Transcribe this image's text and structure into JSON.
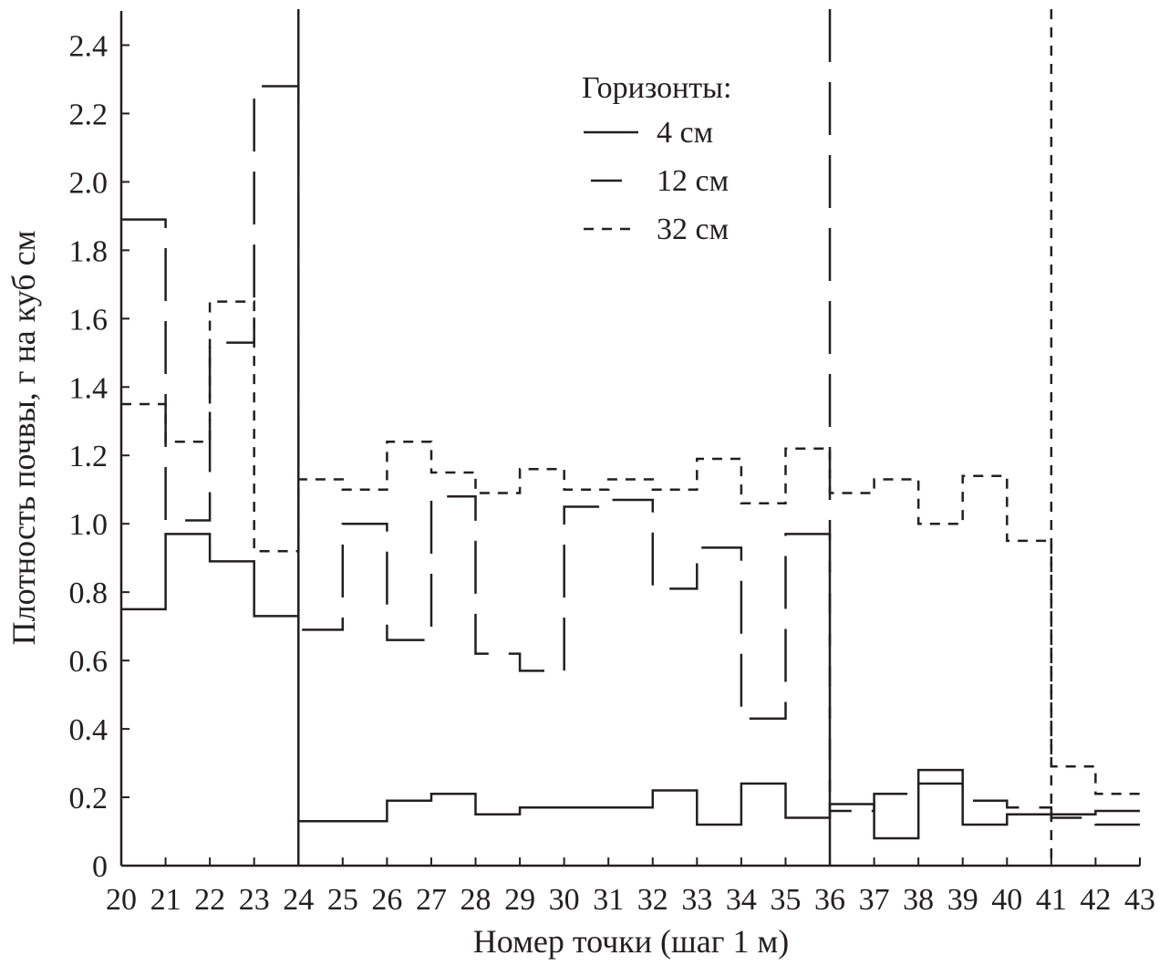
{
  "chart_data": {
    "type": "line",
    "title": "",
    "xlabel": "Номер точки (шаг 1 м)",
    "ylabel": "Плотность почвы, г на куб см",
    "xlim": [
      20,
      43
    ],
    "ylim": [
      0,
      2.5
    ],
    "x_ticks": [
      "20",
      "21",
      "22",
      "23",
      "24",
      "25",
      "26",
      "27",
      "28",
      "29",
      "30",
      "31",
      "32",
      "33",
      "34",
      "35",
      "36",
      "37",
      "38",
      "39",
      "40",
      "41",
      "42",
      "43"
    ],
    "y_ticks": [
      {
        "value": 0,
        "label": "0"
      },
      {
        "value": 0.2,
        "label": "0.2"
      },
      {
        "value": 0.4,
        "label": "0.4"
      },
      {
        "value": 0.6,
        "label": "0.6"
      },
      {
        "value": 0.8,
        "label": "0.8"
      },
      {
        "value": 1.0,
        "label": "1.0"
      },
      {
        "value": 1.2,
        "label": "1.2"
      },
      {
        "value": 1.4,
        "label": "1.4"
      },
      {
        "value": 1.6,
        "label": "1.6"
      },
      {
        "value": 1.8,
        "label": "1.8"
      },
      {
        "value": 2.0,
        "label": "2.0"
      },
      {
        "value": 2.2,
        "label": "2.2"
      },
      {
        "value": 2.4,
        "label": "2.4"
      }
    ],
    "grid": false,
    "legend": {
      "title": "Горизонты:",
      "placement": "top-right"
    },
    "boundaries": [
      {
        "x": 24,
        "style": "solid"
      },
      {
        "x": 36,
        "style": "long-dash"
      },
      {
        "x": 41,
        "style": "short-dash"
      }
    ],
    "step_edges": [
      20,
      21,
      22,
      23,
      24,
      25,
      26,
      27,
      28,
      29,
      30,
      31,
      32,
      33,
      34,
      35,
      36,
      37,
      38,
      39,
      40,
      41,
      42,
      43
    ],
    "series": [
      {
        "name": "4 см",
        "style": "solid",
        "values": [
          0.75,
          0.97,
          0.89,
          0.73,
          0.13,
          0.13,
          0.19,
          0.21,
          0.15,
          0.17,
          0.17,
          0.17,
          0.22,
          0.12,
          0.24,
          0.14,
          0.18,
          0.08,
          0.28,
          0.12,
          0.15,
          0.15,
          0.16
        ]
      },
      {
        "name": "12 см",
        "style": "long-dash",
        "values": [
          1.89,
          1.01,
          1.53,
          2.28,
          0.69,
          1.0,
          0.66,
          1.08,
          0.62,
          0.57,
          1.05,
          1.07,
          0.81,
          0.93,
          0.43,
          0.97,
          0.16,
          0.21,
          0.24,
          0.19,
          0.17,
          0.14,
          0.12
        ]
      },
      {
        "name": "32 см",
        "style": "short-dash",
        "values": [
          1.35,
          1.24,
          1.65,
          0.92,
          1.13,
          1.1,
          1.24,
          1.15,
          1.09,
          1.16,
          1.1,
          1.13,
          1.1,
          1.19,
          1.06,
          1.22,
          1.09,
          1.13,
          1.0,
          1.14,
          0.95,
          0.29,
          0.21
        ]
      }
    ]
  }
}
